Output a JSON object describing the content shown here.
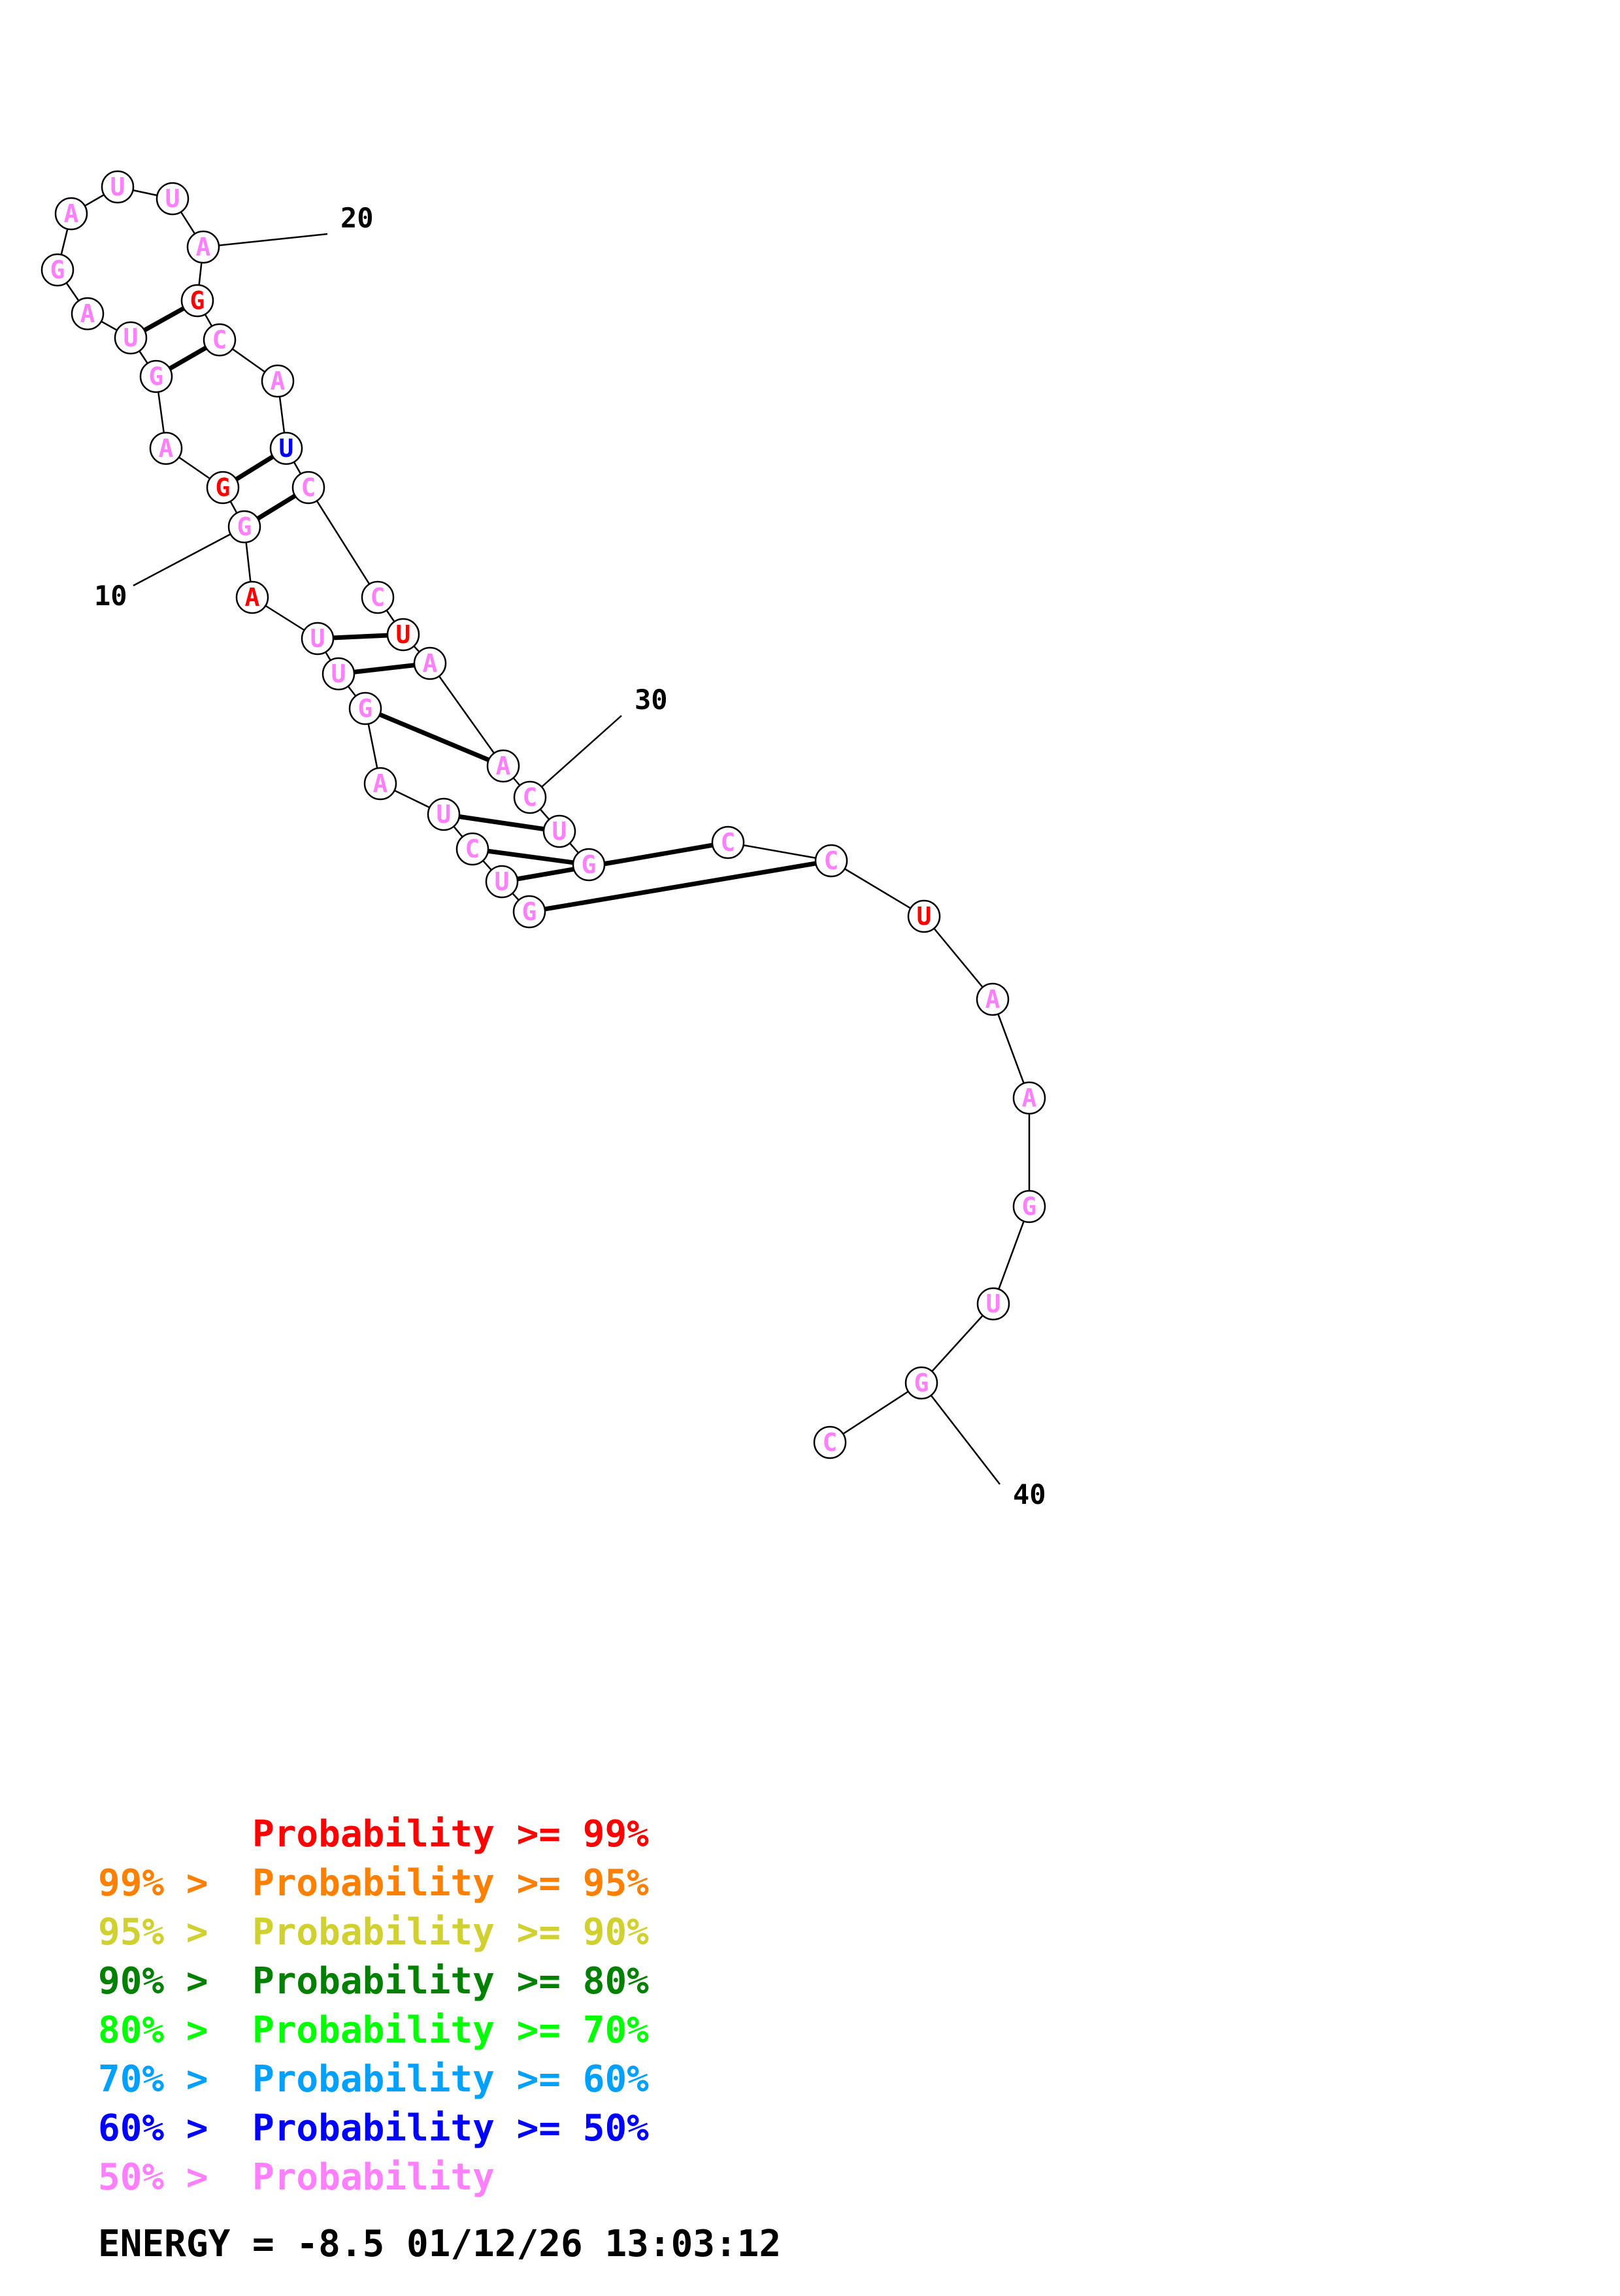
{
  "structure": {
    "sequence": [
      "G",
      "U",
      "C",
      "U",
      "A",
      "G",
      "U",
      "U",
      "A",
      "G",
      "G",
      "A",
      "G",
      "U",
      "A",
      "G",
      "A",
      "U",
      "U",
      "A",
      "G",
      "C",
      "A",
      "U",
      "C",
      "C",
      "U",
      "A",
      "A",
      "C",
      "U",
      "G",
      "C",
      "C",
      "U",
      "A",
      "A",
      "G",
      "U",
      "G",
      "C"
    ],
    "base_probability_class": [
      "pink",
      "pink",
      "pink",
      "pink",
      "pink",
      "pink",
      "pink",
      "pink",
      "red",
      "pink",
      "red",
      "pink",
      "pink",
      "pink",
      "pink",
      "pink",
      "pink",
      "pink",
      "pink",
      "pink",
      "red",
      "pink",
      "pink",
      "blue",
      "pink",
      "pink",
      "red",
      "pink",
      "pink",
      "pink",
      "pink",
      "pink",
      "pink",
      "pink",
      "red",
      "pink",
      "pink",
      "pink",
      "pink",
      "pink",
      "pink"
    ],
    "pairs": [
      [
        1,
        34
      ],
      [
        2,
        33
      ],
      [
        3,
        32
      ],
      [
        4,
        31
      ],
      [
        6,
        29
      ],
      [
        7,
        28
      ],
      [
        8,
        27
      ],
      [
        10,
        25
      ],
      [
        11,
        24
      ],
      [
        13,
        22
      ],
      [
        14,
        21
      ]
    ],
    "position_labels": [
      {
        "index": 10,
        "text": "10"
      },
      {
        "index": 20,
        "text": "20"
      },
      {
        "index": 30,
        "text": "30"
      },
      {
        "index": 40,
        "text": "40"
      }
    ]
  },
  "colors": {
    "red": "#ff0000",
    "orange": "#ff8000",
    "yellow": "#d0d030",
    "darkgreen": "#008000",
    "green": "#00ff00",
    "cyan": "#00a0ff",
    "blue": "#0000ff",
    "pink": "#ff80ff",
    "black": "#000000"
  },
  "legend": [
    {
      "prefix": "",
      "label": "Probability >= 99%",
      "color_key": "red"
    },
    {
      "prefix": "99% > ",
      "label": "Probability >= 95%",
      "color_key": "orange"
    },
    {
      "prefix": "95% > ",
      "label": "Probability >= 90%",
      "color_key": "yellow"
    },
    {
      "prefix": "90% > ",
      "label": "Probability >= 80%",
      "color_key": "darkgreen"
    },
    {
      "prefix": "80% > ",
      "label": "Probability >= 70%",
      "color_key": "green"
    },
    {
      "prefix": "70% > ",
      "label": "Probability >= 60%",
      "color_key": "cyan"
    },
    {
      "prefix": "60% > ",
      "label": "Probability >= 50%",
      "color_key": "blue"
    },
    {
      "prefix": "50% > ",
      "label": "Probability",
      "color_key": "pink"
    }
  ],
  "footer": {
    "energy_text": "ENERGY = -8.5  01/12/26 13:03:12"
  }
}
